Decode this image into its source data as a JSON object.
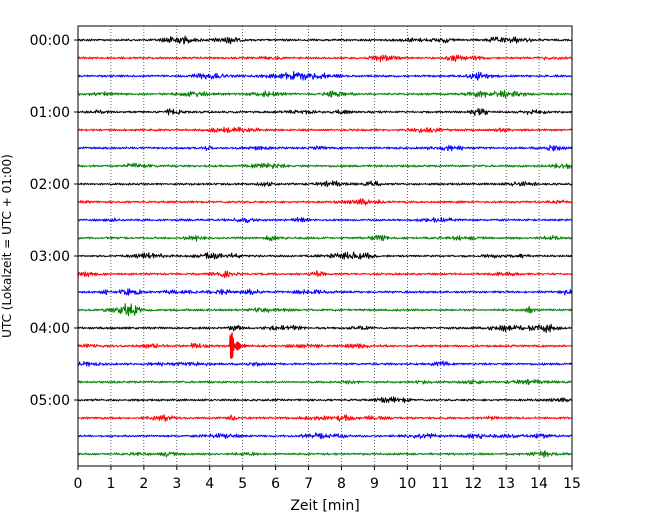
{
  "chart_data": {
    "type": "line",
    "subtype": "helicorder",
    "title": "",
    "xlabel": "Zeit  [min]",
    "ylabel": "UTC (Lokalzeit = UTC + 01:00)",
    "xlim": [
      0,
      15
    ],
    "x_ticks": [
      0,
      1,
      2,
      3,
      4,
      5,
      6,
      7,
      8,
      9,
      10,
      11,
      12,
      13,
      14,
      15
    ],
    "x_tick_labels": [
      "0",
      "1",
      "2",
      "3",
      "4",
      "5",
      "6",
      "7",
      "8",
      "9",
      "10",
      "11",
      "12",
      "13",
      "14",
      "15"
    ],
    "y_tick_labels": [
      "00:00",
      "01:00",
      "02:00",
      "03:00",
      "04:00",
      "05:00"
    ],
    "row_interval_min": 15,
    "row_count": 24,
    "vertical_grid": "dotted",
    "trace_colors": [
      "#000000",
      "#ff0000",
      "#0000ff",
      "#008000"
    ],
    "rows": [
      {
        "start": "00:00",
        "color": "#000000"
      },
      {
        "start": "00:15",
        "color": "#ff0000"
      },
      {
        "start": "00:30",
        "color": "#0000ff"
      },
      {
        "start": "00:45",
        "color": "#008000"
      },
      {
        "start": "01:00",
        "color": "#000000"
      },
      {
        "start": "01:15",
        "color": "#ff0000"
      },
      {
        "start": "01:30",
        "color": "#0000ff"
      },
      {
        "start": "01:45",
        "color": "#008000"
      },
      {
        "start": "02:00",
        "color": "#000000"
      },
      {
        "start": "02:15",
        "color": "#ff0000"
      },
      {
        "start": "02:30",
        "color": "#0000ff"
      },
      {
        "start": "02:45",
        "color": "#008000"
      },
      {
        "start": "03:00",
        "color": "#000000"
      },
      {
        "start": "03:15",
        "color": "#ff0000"
      },
      {
        "start": "03:30",
        "color": "#0000ff"
      },
      {
        "start": "03:45",
        "color": "#008000"
      },
      {
        "start": "04:00",
        "color": "#000000"
      },
      {
        "start": "04:15",
        "color": "#ff0000",
        "event_at_min": 4.65
      },
      {
        "start": "04:30",
        "color": "#0000ff"
      },
      {
        "start": "04:45",
        "color": "#008000"
      },
      {
        "start": "05:00",
        "color": "#000000"
      },
      {
        "start": "05:15",
        "color": "#ff0000"
      },
      {
        "start": "05:30",
        "color": "#0000ff"
      },
      {
        "start": "05:45",
        "color": "#008000"
      }
    ]
  }
}
